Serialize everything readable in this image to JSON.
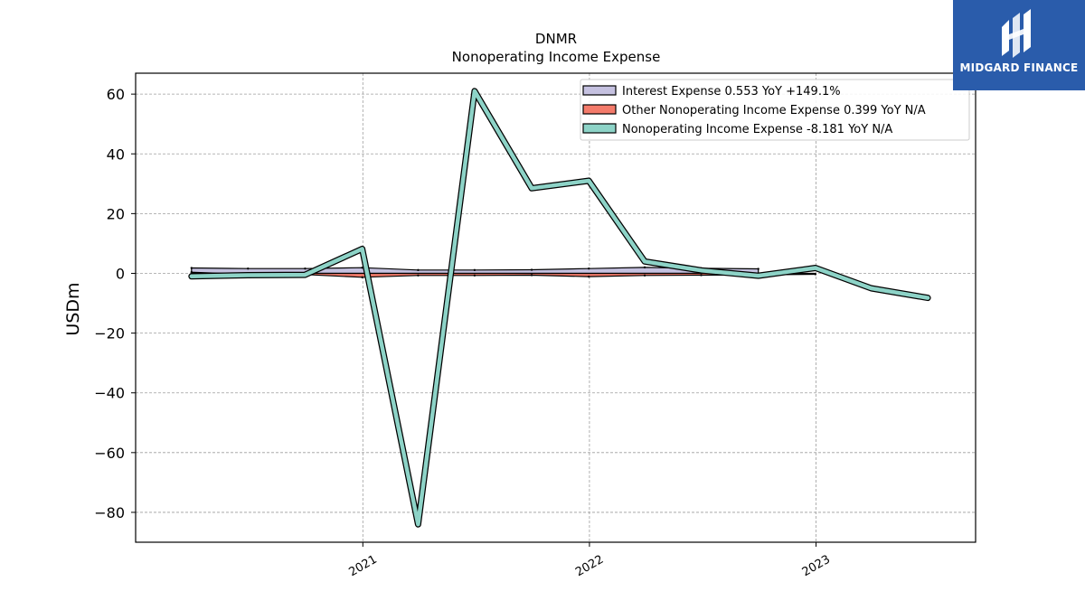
{
  "chart_data": {
    "type": "line",
    "title": "DNMR",
    "subtitle": "Nonoperating Income Expense",
    "xlabel": "",
    "ylabel": "USDm",
    "xlim": [
      "2020-01-01",
      "2023-09-15"
    ],
    "ylim": [
      -90,
      67
    ],
    "x_ticks": [
      "2021-01-01",
      "2022-01-01",
      "2023-01-01"
    ],
    "x_tick_labels": [
      "2021",
      "2022",
      "2023"
    ],
    "y_ticks": [
      -80,
      -60,
      -40,
      -20,
      0,
      20,
      40,
      60
    ],
    "y_tick_labels": [
      "−80",
      "−60",
      "−40",
      "−20",
      "0",
      "20",
      "40",
      "60"
    ],
    "grid": true,
    "legend_position": "top-right",
    "series": [
      {
        "name": "Interest Expense  0.553 YoY +149.1%",
        "color": "#c5c1e0",
        "style": "area",
        "x": [
          "2020-03-31",
          "2020-06-30",
          "2020-09-30",
          "2020-12-31",
          "2021-03-31",
          "2021-06-30",
          "2021-09-30",
          "2021-12-31",
          "2022-03-31",
          "2022-06-30",
          "2022-09-30"
        ],
        "values": [
          1.8,
          1.6,
          1.6,
          1.9,
          1.1,
          1.1,
          1.2,
          1.6,
          2.0,
          1.7,
          1.5
        ]
      },
      {
        "name": "Other Nonoperating Income Expense  0.399 YoY N/A",
        "color": "#f47b6b",
        "style": "area",
        "x": [
          "2020-03-31",
          "2020-06-30",
          "2020-09-30",
          "2020-12-31",
          "2021-03-31",
          "2021-06-30",
          "2021-09-30",
          "2021-12-31",
          "2022-03-31",
          "2022-06-30",
          "2022-09-30",
          "2022-12-31"
        ],
        "values": [
          0.4,
          -0.3,
          -0.4,
          -1.3,
          -0.7,
          -0.7,
          -0.6,
          -1.1,
          -0.7,
          -0.6,
          -0.5,
          -0.3
        ]
      },
      {
        "name": "Nonoperating Income Expense  -8.181 YoY N/A",
        "color": "#8dd3c7",
        "style": "line",
        "x": [
          "2020-03-31",
          "2020-06-30",
          "2020-09-30",
          "2020-12-31",
          "2021-03-31",
          "2021-06-30",
          "2021-09-30",
          "2021-12-31",
          "2022-03-31",
          "2022-06-30",
          "2022-09-30",
          "2022-12-31",
          "2023-03-31",
          "2023-06-30"
        ],
        "values": [
          -1.0,
          -0.6,
          -0.5,
          8.2,
          -84.0,
          61.0,
          28.5,
          31.0,
          4.0,
          1.0,
          -0.8,
          1.8,
          -5.0,
          -8.2
        ]
      }
    ]
  },
  "logo": {
    "text": "MIDGARD FINANCE"
  }
}
